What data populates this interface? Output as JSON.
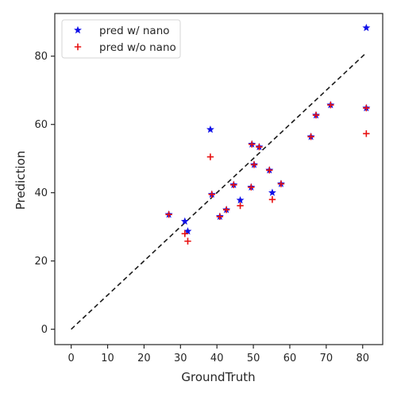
{
  "chart_data": {
    "type": "scatter",
    "xlabel": "GroundTruth",
    "ylabel": "Prediction",
    "xlim": [
      -4.5,
      85.5
    ],
    "ylim": [
      -4.5,
      92.5
    ],
    "xticks": [
      0,
      10,
      20,
      30,
      40,
      50,
      60,
      70,
      80
    ],
    "yticks": [
      0,
      20,
      40,
      60,
      80
    ],
    "grid": false,
    "legend_position": "top-left",
    "reference_line": {
      "style": "dashed",
      "color": "#1a1a1a",
      "from": [
        0,
        0
      ],
      "to": [
        81,
        81
      ]
    },
    "series": [
      {
        "name": "pred w/ nano",
        "marker": "star",
        "color": "#1010e8",
        "points": [
          [
            26.8,
            33.6
          ],
          [
            31.2,
            31.6
          ],
          [
            32.0,
            28.7
          ],
          [
            38.2,
            58.5
          ],
          [
            38.6,
            39.5
          ],
          [
            40.8,
            33.0
          ],
          [
            42.6,
            35.0
          ],
          [
            44.6,
            42.3
          ],
          [
            46.4,
            37.8
          ],
          [
            49.4,
            41.6
          ],
          [
            49.6,
            54.2
          ],
          [
            50.2,
            48.2
          ],
          [
            51.6,
            53.4
          ],
          [
            54.4,
            46.6
          ],
          [
            55.2,
            40.0
          ],
          [
            57.6,
            42.6
          ],
          [
            65.8,
            56.4
          ],
          [
            67.2,
            62.7
          ],
          [
            71.2,
            65.7
          ],
          [
            81.0,
            64.8
          ],
          [
            81.0,
            88.3
          ]
        ]
      },
      {
        "name": "pred w/o nano",
        "marker": "plus",
        "color": "#e81010",
        "points": [
          [
            26.8,
            33.6
          ],
          [
            31.2,
            28.0
          ],
          [
            32.0,
            25.8
          ],
          [
            38.2,
            50.5
          ],
          [
            38.6,
            39.5
          ],
          [
            40.8,
            33.0
          ],
          [
            42.6,
            35.0
          ],
          [
            44.6,
            42.3
          ],
          [
            46.4,
            36.2
          ],
          [
            49.4,
            41.6
          ],
          [
            49.6,
            54.2
          ],
          [
            50.2,
            48.2
          ],
          [
            51.6,
            53.4
          ],
          [
            54.4,
            46.6
          ],
          [
            55.2,
            38.0
          ],
          [
            57.6,
            42.6
          ],
          [
            65.8,
            56.4
          ],
          [
            67.2,
            62.7
          ],
          [
            71.2,
            65.7
          ],
          [
            81.0,
            64.8
          ],
          [
            81.0,
            57.3
          ]
        ]
      }
    ]
  }
}
